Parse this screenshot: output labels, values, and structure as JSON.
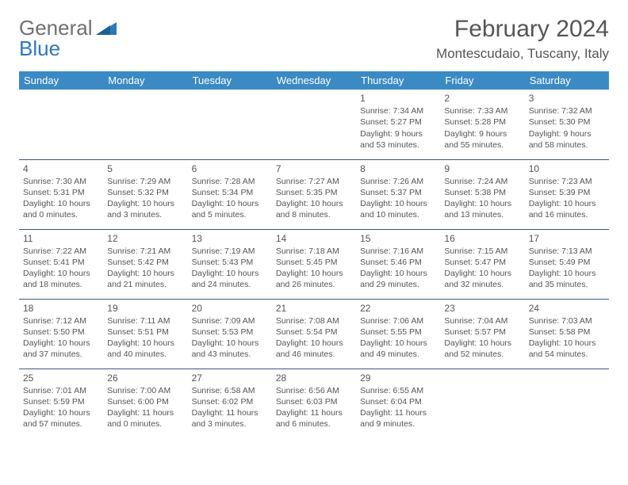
{
  "logo": {
    "word1": "General",
    "word2": "Blue"
  },
  "title": "February 2024",
  "location": "Montescudaio, Tuscany, Italy",
  "colors": {
    "header_bg": "#3b8ac4",
    "header_text": "#ffffff",
    "border": "#3b5a7a",
    "logo_gray": "#707070",
    "logo_blue": "#2f77bb",
    "text": "#555555"
  },
  "weekdays": [
    "Sunday",
    "Monday",
    "Tuesday",
    "Wednesday",
    "Thursday",
    "Friday",
    "Saturday"
  ],
  "weeks": [
    [
      null,
      null,
      null,
      null,
      {
        "n": "1",
        "sr": "7:34 AM",
        "ss": "5:27 PM",
        "dl": "9 hours and 53 minutes."
      },
      {
        "n": "2",
        "sr": "7:33 AM",
        "ss": "5:28 PM",
        "dl": "9 hours and 55 minutes."
      },
      {
        "n": "3",
        "sr": "7:32 AM",
        "ss": "5:30 PM",
        "dl": "9 hours and 58 minutes."
      }
    ],
    [
      {
        "n": "4",
        "sr": "7:30 AM",
        "ss": "5:31 PM",
        "dl": "10 hours and 0 minutes."
      },
      {
        "n": "5",
        "sr": "7:29 AM",
        "ss": "5:32 PM",
        "dl": "10 hours and 3 minutes."
      },
      {
        "n": "6",
        "sr": "7:28 AM",
        "ss": "5:34 PM",
        "dl": "10 hours and 5 minutes."
      },
      {
        "n": "7",
        "sr": "7:27 AM",
        "ss": "5:35 PM",
        "dl": "10 hours and 8 minutes."
      },
      {
        "n": "8",
        "sr": "7:26 AM",
        "ss": "5:37 PM",
        "dl": "10 hours and 10 minutes."
      },
      {
        "n": "9",
        "sr": "7:24 AM",
        "ss": "5:38 PM",
        "dl": "10 hours and 13 minutes."
      },
      {
        "n": "10",
        "sr": "7:23 AM",
        "ss": "5:39 PM",
        "dl": "10 hours and 16 minutes."
      }
    ],
    [
      {
        "n": "11",
        "sr": "7:22 AM",
        "ss": "5:41 PM",
        "dl": "10 hours and 18 minutes."
      },
      {
        "n": "12",
        "sr": "7:21 AM",
        "ss": "5:42 PM",
        "dl": "10 hours and 21 minutes."
      },
      {
        "n": "13",
        "sr": "7:19 AM",
        "ss": "5:43 PM",
        "dl": "10 hours and 24 minutes."
      },
      {
        "n": "14",
        "sr": "7:18 AM",
        "ss": "5:45 PM",
        "dl": "10 hours and 26 minutes."
      },
      {
        "n": "15",
        "sr": "7:16 AM",
        "ss": "5:46 PM",
        "dl": "10 hours and 29 minutes."
      },
      {
        "n": "16",
        "sr": "7:15 AM",
        "ss": "5:47 PM",
        "dl": "10 hours and 32 minutes."
      },
      {
        "n": "17",
        "sr": "7:13 AM",
        "ss": "5:49 PM",
        "dl": "10 hours and 35 minutes."
      }
    ],
    [
      {
        "n": "18",
        "sr": "7:12 AM",
        "ss": "5:50 PM",
        "dl": "10 hours and 37 minutes."
      },
      {
        "n": "19",
        "sr": "7:11 AM",
        "ss": "5:51 PM",
        "dl": "10 hours and 40 minutes."
      },
      {
        "n": "20",
        "sr": "7:09 AM",
        "ss": "5:53 PM",
        "dl": "10 hours and 43 minutes."
      },
      {
        "n": "21",
        "sr": "7:08 AM",
        "ss": "5:54 PM",
        "dl": "10 hours and 46 minutes."
      },
      {
        "n": "22",
        "sr": "7:06 AM",
        "ss": "5:55 PM",
        "dl": "10 hours and 49 minutes."
      },
      {
        "n": "23",
        "sr": "7:04 AM",
        "ss": "5:57 PM",
        "dl": "10 hours and 52 minutes."
      },
      {
        "n": "24",
        "sr": "7:03 AM",
        "ss": "5:58 PM",
        "dl": "10 hours and 54 minutes."
      }
    ],
    [
      {
        "n": "25",
        "sr": "7:01 AM",
        "ss": "5:59 PM",
        "dl": "10 hours and 57 minutes."
      },
      {
        "n": "26",
        "sr": "7:00 AM",
        "ss": "6:00 PM",
        "dl": "11 hours and 0 minutes."
      },
      {
        "n": "27",
        "sr": "6:58 AM",
        "ss": "6:02 PM",
        "dl": "11 hours and 3 minutes."
      },
      {
        "n": "28",
        "sr": "6:56 AM",
        "ss": "6:03 PM",
        "dl": "11 hours and 6 minutes."
      },
      {
        "n": "29",
        "sr": "6:55 AM",
        "ss": "6:04 PM",
        "dl": "11 hours and 9 minutes."
      },
      null,
      null
    ]
  ],
  "labels": {
    "sunrise": "Sunrise:",
    "sunset": "Sunset:",
    "daylight": "Daylight:"
  }
}
